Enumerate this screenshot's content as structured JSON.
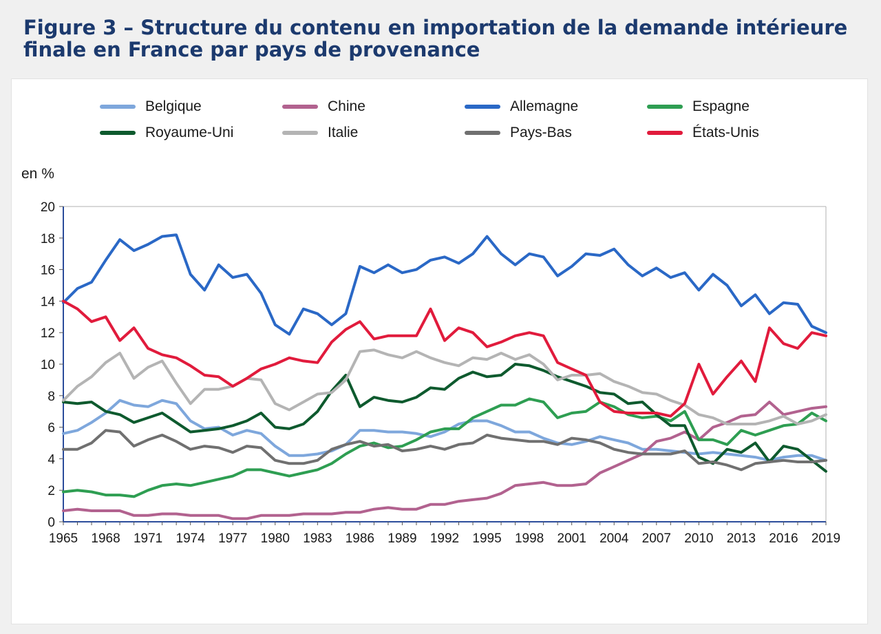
{
  "title": "Figure 3 – Structure du contenu en importation de la demande intérieure finale en France par pays de provenance",
  "chart_data": {
    "type": "line",
    "ylabel": "en %",
    "ylim": [
      0,
      20
    ],
    "yticks": [
      0,
      2,
      4,
      6,
      8,
      10,
      12,
      14,
      16,
      18,
      20
    ],
    "xlim": [
      1965,
      2019
    ],
    "xticks": [
      1965,
      1968,
      1971,
      1974,
      1977,
      1980,
      1983,
      1986,
      1989,
      1992,
      1995,
      1998,
      2001,
      2004,
      2007,
      2010,
      2013,
      2016,
      2019
    ],
    "legend_placement": "top",
    "grid": false,
    "x": [
      1965,
      1966,
      1967,
      1968,
      1969,
      1970,
      1971,
      1972,
      1973,
      1974,
      1975,
      1976,
      1977,
      1978,
      1979,
      1980,
      1981,
      1982,
      1983,
      1984,
      1985,
      1986,
      1987,
      1988,
      1989,
      1990,
      1991,
      1992,
      1993,
      1994,
      1995,
      1996,
      1997,
      1998,
      1999,
      2000,
      2001,
      2002,
      2003,
      2004,
      2005,
      2006,
      2007,
      2008,
      2009,
      2010,
      2011,
      2012,
      2013,
      2014,
      2015,
      2016,
      2017,
      2018,
      2019
    ],
    "series": [
      {
        "name": "Belgique",
        "color": "#7ea7dc",
        "values": [
          5.6,
          5.8,
          6.3,
          6.9,
          7.7,
          7.4,
          7.3,
          7.7,
          7.5,
          6.4,
          5.9,
          6.0,
          5.5,
          5.8,
          5.6,
          4.8,
          4.2,
          4.2,
          4.3,
          4.5,
          4.9,
          5.8,
          5.8,
          5.7,
          5.7,
          5.6,
          5.4,
          5.7,
          6.2,
          6.4,
          6.4,
          6.1,
          5.7,
          5.7,
          5.3,
          5.0,
          4.9,
          5.1,
          5.4,
          5.2,
          5.0,
          4.6,
          4.6,
          4.5,
          4.4,
          4.3,
          4.4,
          4.3,
          4.2,
          4.1,
          3.9,
          4.1,
          4.2,
          4.2,
          3.9
        ]
      },
      {
        "name": "Chine",
        "color": "#b2628f",
        "values": [
          0.7,
          0.8,
          0.7,
          0.7,
          0.7,
          0.4,
          0.4,
          0.5,
          0.5,
          0.4,
          0.4,
          0.4,
          0.2,
          0.2,
          0.4,
          0.4,
          0.4,
          0.5,
          0.5,
          0.5,
          0.6,
          0.6,
          0.8,
          0.9,
          0.8,
          0.8,
          1.1,
          1.1,
          1.3,
          1.4,
          1.5,
          1.8,
          2.3,
          2.4,
          2.5,
          2.3,
          2.3,
          2.4,
          3.1,
          3.5,
          3.9,
          4.3,
          5.1,
          5.3,
          5.7,
          5.2,
          6.0,
          6.3,
          6.7,
          6.8,
          7.6,
          6.8,
          7.0,
          7.2,
          7.3
        ]
      },
      {
        "name": "Allemagne",
        "color": "#2a68c6",
        "values": [
          13.9,
          14.8,
          15.2,
          16.6,
          17.9,
          17.2,
          17.6,
          18.1,
          18.2,
          15.7,
          14.7,
          16.3,
          15.5,
          15.7,
          14.5,
          12.5,
          11.9,
          13.5,
          13.2,
          12.5,
          13.2,
          16.2,
          15.8,
          16.3,
          15.8,
          16.0,
          16.6,
          16.8,
          16.4,
          17.0,
          18.1,
          17.0,
          16.3,
          17.0,
          16.8,
          15.6,
          16.2,
          17.0,
          16.9,
          17.3,
          16.3,
          15.6,
          16.1,
          15.5,
          15.8,
          14.7,
          15.7,
          15.0,
          13.7,
          14.4,
          13.2,
          13.9,
          13.8,
          12.4,
          12.0
        ]
      },
      {
        "name": "Espagne",
        "color": "#2e9e52",
        "values": [
          1.9,
          2.0,
          1.9,
          1.7,
          1.7,
          1.6,
          2.0,
          2.3,
          2.4,
          2.3,
          2.5,
          2.7,
          2.9,
          3.3,
          3.3,
          3.1,
          2.9,
          3.1,
          3.3,
          3.7,
          4.3,
          4.8,
          5.0,
          4.7,
          4.8,
          5.2,
          5.7,
          5.9,
          5.9,
          6.6,
          7.0,
          7.4,
          7.4,
          7.8,
          7.6,
          6.6,
          6.9,
          7.0,
          7.6,
          7.3,
          6.8,
          6.6,
          6.7,
          6.4,
          7.0,
          5.2,
          5.2,
          4.9,
          5.8,
          5.5,
          5.8,
          6.1,
          6.2,
          6.9,
          6.4
        ]
      },
      {
        "name": "Royaume-Uni",
        "color": "#0e5a2e",
        "values": [
          7.6,
          7.5,
          7.6,
          7.0,
          6.8,
          6.3,
          6.6,
          6.9,
          6.3,
          5.7,
          5.8,
          5.9,
          6.1,
          6.4,
          6.9,
          6.0,
          5.9,
          6.2,
          7.0,
          8.3,
          9.3,
          7.3,
          7.9,
          7.7,
          7.6,
          7.9,
          8.5,
          8.4,
          9.1,
          9.5,
          9.2,
          9.3,
          10.0,
          9.9,
          9.6,
          9.2,
          8.9,
          8.6,
          8.2,
          8.1,
          7.5,
          7.6,
          6.8,
          6.1,
          6.1,
          4.1,
          3.7,
          4.6,
          4.4,
          5.0,
          3.8,
          4.8,
          4.6,
          3.9,
          3.2
        ]
      },
      {
        "name": "Italie",
        "color": "#b4b4b4",
        "values": [
          7.7,
          8.6,
          9.2,
          10.1,
          10.7,
          9.1,
          9.8,
          10.2,
          8.8,
          7.5,
          8.4,
          8.4,
          8.6,
          9.1,
          9.0,
          7.5,
          7.1,
          7.6,
          8.1,
          8.2,
          9.0,
          10.8,
          10.9,
          10.6,
          10.4,
          10.8,
          10.4,
          10.1,
          9.9,
          10.4,
          10.3,
          10.7,
          10.3,
          10.6,
          10.0,
          9.0,
          9.3,
          9.3,
          9.4,
          8.9,
          8.6,
          8.2,
          8.1,
          7.7,
          7.4,
          6.8,
          6.6,
          6.2,
          6.2,
          6.2,
          6.4,
          6.7,
          6.2,
          6.4,
          6.8
        ]
      },
      {
        "name": "Pays-Bas",
        "color": "#707070",
        "values": [
          4.6,
          4.6,
          5.0,
          5.8,
          5.7,
          4.8,
          5.2,
          5.5,
          5.1,
          4.6,
          4.8,
          4.7,
          4.4,
          4.8,
          4.7,
          3.9,
          3.7,
          3.7,
          3.9,
          4.6,
          4.9,
          5.1,
          4.8,
          4.9,
          4.5,
          4.6,
          4.8,
          4.6,
          4.9,
          5.0,
          5.5,
          5.3,
          5.2,
          5.1,
          5.1,
          4.9,
          5.3,
          5.2,
          5.0,
          4.6,
          4.4,
          4.3,
          4.3,
          4.3,
          4.5,
          3.7,
          3.8,
          3.6,
          3.3,
          3.7,
          3.8,
          3.9,
          3.8,
          3.8,
          3.9
        ]
      },
      {
        "name": "États-Unis",
        "color": "#e11b3c",
        "values": [
          14.0,
          13.5,
          12.7,
          13.0,
          11.5,
          12.3,
          11.0,
          10.6,
          10.4,
          9.9,
          9.3,
          9.2,
          8.6,
          9.1,
          9.7,
          10.0,
          10.4,
          10.2,
          10.1,
          11.4,
          12.2,
          12.7,
          11.6,
          11.8,
          11.8,
          11.8,
          13.5,
          11.5,
          12.3,
          12.0,
          11.1,
          11.4,
          11.8,
          12.0,
          11.8,
          10.1,
          9.7,
          9.3,
          7.6,
          7.0,
          6.9,
          6.9,
          6.9,
          6.7,
          7.5,
          10.0,
          8.1,
          9.2,
          10.2,
          8.9,
          12.3,
          11.3,
          11.0,
          12.0,
          11.8
        ]
      }
    ]
  }
}
